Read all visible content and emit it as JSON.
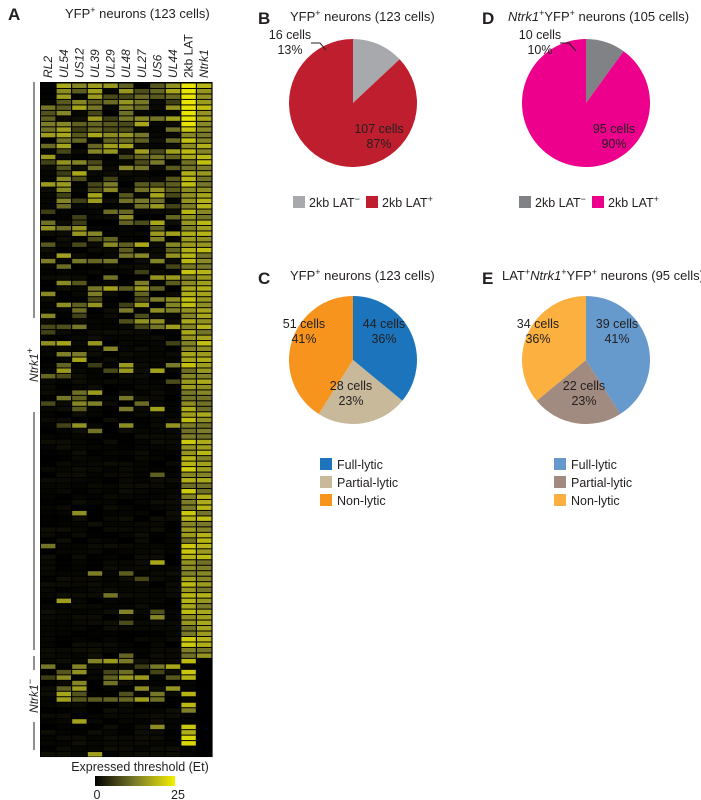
{
  "panels": {
    "A": {
      "letter": "A",
      "title_pre": "YFP",
      "title_sup": "+",
      "title_post": " neurons (123 cells)",
      "genes": [
        "RL2",
        "UL54",
        "US12",
        "UL39",
        "UL29",
        "UL48",
        "UL27",
        "US6",
        "UL44",
        "2kb LAT",
        "Ntrk1"
      ],
      "group_pos_label": "Ntrk1",
      "group_pos_sup": "+",
      "group_neg_label": "Ntrk1",
      "group_neg_sup": "−",
      "colorbar_title": "Expressed threshold (Et)",
      "colorbar_min": "0",
      "colorbar_max": "25",
      "colors": {
        "low": "#000000",
        "mid": "#7a7a2a",
        "high": "#f4f000"
      }
    },
    "B": {
      "letter": "B",
      "title_pre": "YFP",
      "title_sup": "+",
      "title_post": " neurons (123 cells)",
      "legend": [
        {
          "pre": "2kb LAT",
          "sup": "−",
          "color": "#a7a9ac"
        },
        {
          "pre": "2kb LAT",
          "sup": "+",
          "color": "#be1e2d"
        }
      ]
    },
    "C": {
      "letter": "C",
      "title_pre": "YFP",
      "title_sup": "+",
      "title_post": " neurons (123 cells)",
      "legend": [
        {
          "label": "Full-lytic",
          "color": "#1c75bc"
        },
        {
          "label": "Partial-lytic",
          "color": "#c8b99b"
        },
        {
          "label": "Non-lytic",
          "color": "#f7941d"
        }
      ]
    },
    "D": {
      "letter": "D",
      "title_italic": "Ntrk1",
      "title_sup1": "+",
      "title_mid": "YFP",
      "title_sup2": "+",
      "title_post": " neurons (105 cells)",
      "legend": [
        {
          "pre": "2kb LAT",
          "sup": "−",
          "color": "#808285"
        },
        {
          "pre": "2kb LAT",
          "sup": "+",
          "color": "#ec008c"
        }
      ]
    },
    "E": {
      "letter": "E",
      "title_pre": "LAT",
      "title_sup1": "+",
      "title_italic": "Ntrk1",
      "title_sup2": "+",
      "title_mid": "YFP",
      "title_sup3": "+",
      "title_post": " neurons (95 cells)",
      "legend": [
        {
          "label": "Full-lytic",
          "color": "#6699cc"
        },
        {
          "label": "Partial-lytic",
          "color": "#a18a7f"
        },
        {
          "label": "Non-lytic",
          "color": "#fbb040"
        }
      ]
    }
  },
  "chart_data": [
    {
      "type": "heatmap",
      "title": "YFP+ neurons (123 cells)",
      "columns": [
        "RL2",
        "UL54",
        "US12",
        "UL39",
        "UL29",
        "UL48",
        "UL27",
        "US6",
        "UL44",
        "2kb LAT",
        "Ntrk1"
      ],
      "n_rows": 123,
      "groups": [
        {
          "name": "Ntrk1+",
          "rows": 105
        },
        {
          "name": "Ntrk1−",
          "rows": 18
        }
      ],
      "colorbar": {
        "label": "Expressed threshold (Et)",
        "min": 0,
        "max": 25
      },
      "cell_values_note": ""
    },
    {
      "type": "pie",
      "title": "YFP+ neurons (123 cells)",
      "slices": [
        {
          "name": "2kb LAT−",
          "cells": 16,
          "percent": 13,
          "cells_label": "16 cells",
          "percent_label": "13%"
        },
        {
          "name": "2kb LAT+",
          "cells": 107,
          "percent": 87,
          "cells_label": "107 cells",
          "percent_label": "87%"
        }
      ]
    },
    {
      "type": "pie",
      "title": "YFP+ neurons (123 cells)",
      "slices": [
        {
          "name": "Full-lytic",
          "cells": 44,
          "percent": 36,
          "cells_label": "44 cells",
          "percent_label": "36%"
        },
        {
          "name": "Partial-lytic",
          "cells": 28,
          "percent": 23,
          "cells_label": "28 cells",
          "percent_label": "23%"
        },
        {
          "name": "Non-lytic",
          "cells": 51,
          "percent": 41,
          "cells_label": "51 cells",
          "percent_label": "41%"
        }
      ]
    },
    {
      "type": "pie",
      "title": "Ntrk1+YFP+ neurons (105 cells)",
      "slices": [
        {
          "name": "2kb LAT−",
          "cells": 10,
          "percent": 10,
          "cells_label": "10 cells",
          "percent_label": "10%"
        },
        {
          "name": "2kb LAT+",
          "cells": 95,
          "percent": 90,
          "cells_label": "95 cells",
          "percent_label": "90%"
        }
      ]
    },
    {
      "type": "pie",
      "title": "LAT+Ntrk1+YFP+ neurons (95 cells)",
      "slices": [
        {
          "name": "Full-lytic",
          "cells": 39,
          "percent": 41,
          "cells_label": "39 cells",
          "percent_label": "41%"
        },
        {
          "name": "Partial-lytic",
          "cells": 22,
          "percent": 23,
          "cells_label": "22 cells",
          "percent_label": "23%"
        },
        {
          "name": "Non-lytic",
          "cells": 34,
          "percent": 36,
          "cells_label": "34 cells",
          "percent_label": "36%"
        }
      ]
    }
  ]
}
